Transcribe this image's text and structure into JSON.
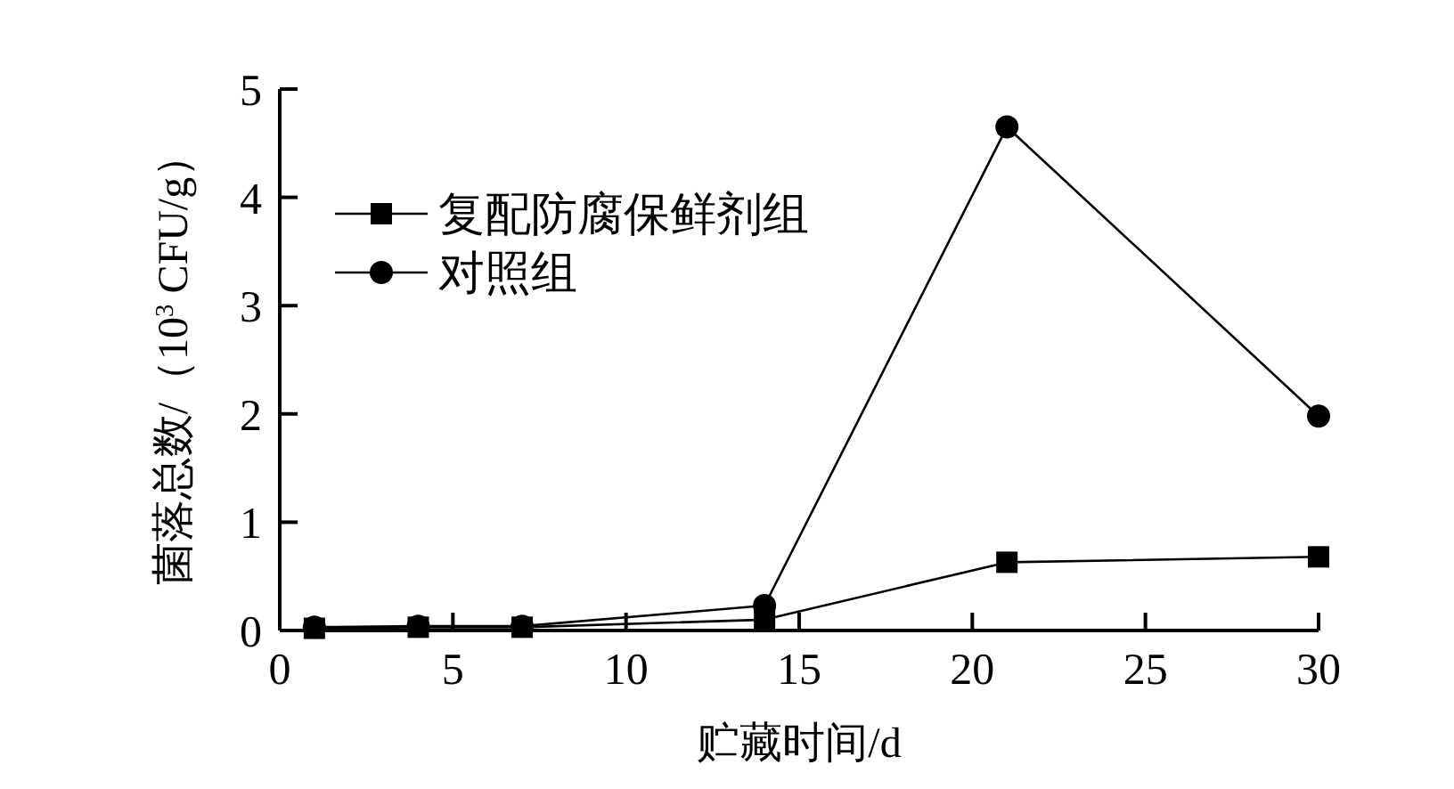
{
  "chart_data": {
    "type": "line",
    "xlabel": "贮藏时间/d",
    "ylabel": "菌落总数/（10$^{3}$ CFU/g）",
    "x": [
      1,
      4,
      7,
      14,
      21,
      30
    ],
    "series": [
      {
        "name": "复配防腐保鲜剂组",
        "color": "#000000",
        "marker": "square",
        "values": [
          0.02,
          0.03,
          0.03,
          0.1,
          0.63,
          0.68
        ],
        "errors": [
          0.02,
          0.02,
          0.02,
          0.04,
          0.04,
          0.04
        ]
      },
      {
        "name": "对照组",
        "color": "#000000",
        "marker": "circle",
        "values": [
          0.03,
          0.04,
          0.04,
          0.23,
          4.65,
          1.98
        ],
        "errors": [
          0.02,
          0.02,
          0.02,
          0.04,
          0.06,
          0.04
        ]
      }
    ],
    "xlim": [
      0,
      30
    ],
    "xticks": [
      0,
      5,
      10,
      15,
      20,
      25,
      30
    ],
    "ylim": [
      0,
      5
    ],
    "yticks": [
      0,
      1,
      2,
      3,
      4,
      5
    ],
    "grid": false,
    "legend": "top left",
    "line_style": "solid"
  }
}
